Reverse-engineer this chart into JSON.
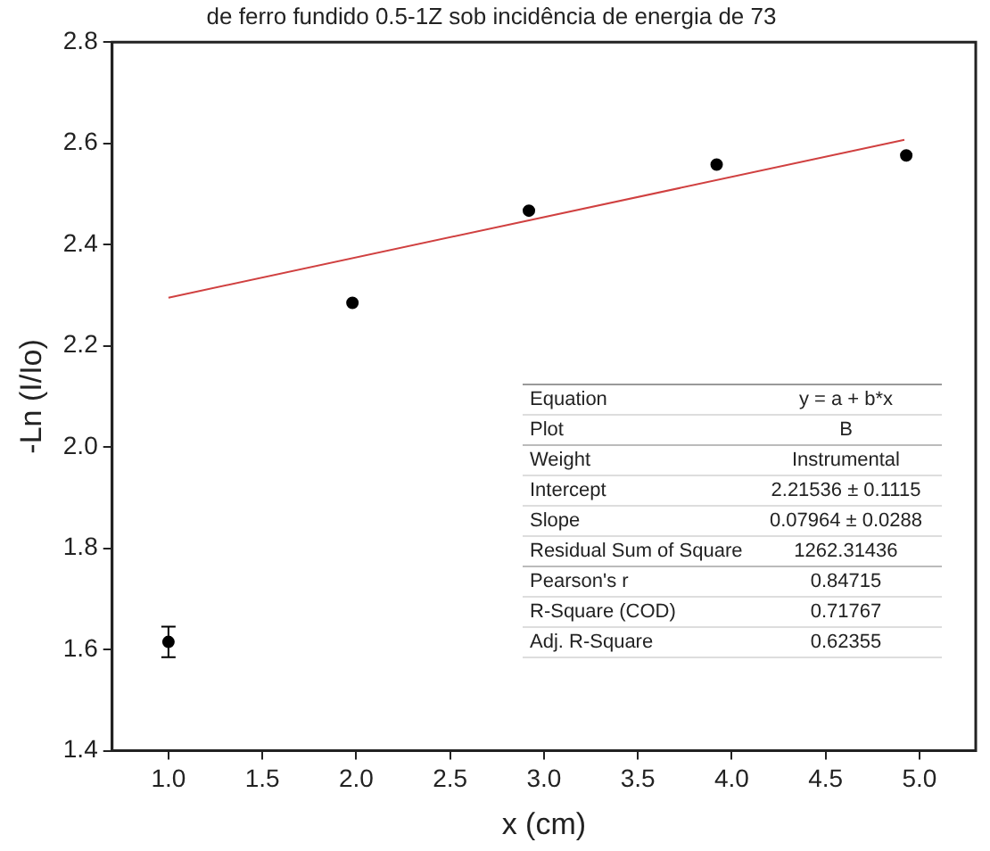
{
  "chart_data": {
    "type": "scatter",
    "title": "de ferro fundido 0.5-1Z sob incidência de energia de 73",
    "xlabel": "x (cm)",
    "ylabel": "-Ln (I/Io)",
    "xlim": [
      0.7,
      5.3
    ],
    "xticks": [
      {
        "value": 1,
        "label": "1.0"
      },
      1.5,
      {
        "value": 2,
        "label": "2.0"
      },
      2.5,
      {
        "value": 3,
        "label": "3.0"
      },
      3.5,
      {
        "value": 4,
        "label": "4.0"
      },
      4.5,
      {
        "value": 5,
        "label": "5.0"
      }
    ],
    "ylim": [
      1.4,
      2.8
    ],
    "yticks": [
      1.4,
      1.6,
      1.8,
      {
        "value": 2,
        "label": "2.0"
      },
      2.2,
      2.4,
      2.6,
      2.8
    ],
    "grid": false,
    "legend": false,
    "series": [
      {
        "color": "#000000",
        "marker": "circle",
        "x": [
          1.0,
          1.98,
          2.92,
          3.92,
          4.93
        ],
        "values": [
          1.615,
          2.285,
          2.467,
          2.558,
          2.576
        ],
        "errors": [
          0.03,
          null,
          null,
          null,
          null
        ]
      },
      {
        "type": "line",
        "color": "#d04040",
        "x": [
          1.0,
          4.92
        ],
        "values": [
          2.295,
          2.607
        ],
        "line_style": "solid"
      }
    ],
    "annotations": [
      "Equation",
      "y = a + b*x",
      "Plot",
      "B",
      "Weight",
      "Instrumental",
      "Intercept",
      "2.21536 ± 0.1115",
      "Slope",
      "0.07964 ± 0.0288",
      "Residual Sum of Square",
      "1262.31436",
      "Pearson's r",
      "0.84715",
      "R-Square (COD)",
      "0.71767",
      "Adj. R-Square",
      "0.62355"
    ]
  }
}
